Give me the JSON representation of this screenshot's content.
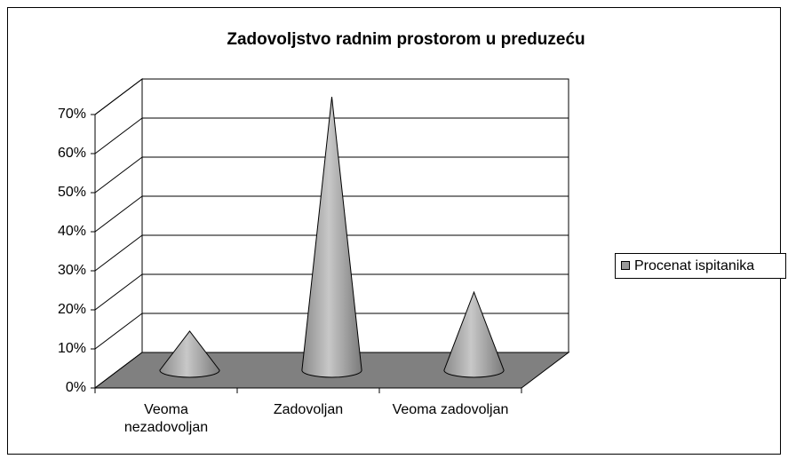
{
  "chart_data": {
    "type": "cone3d",
    "title": "Zadovoljstvo radnim prostorom u preduzeću",
    "categories": [
      "Veoma nezadovoljan",
      "Zadovoljan",
      "Veoma zadovoljan"
    ],
    "series": [
      {
        "name": "Procenat ispitanika",
        "color": "#9a9a9a",
        "values": [
          10,
          70,
          20
        ]
      }
    ],
    "ylim": [
      0,
      70
    ],
    "yticks": [
      {
        "value": 0,
        "label": "0%"
      },
      {
        "value": 10,
        "label": "10%"
      },
      {
        "value": 20,
        "label": "20%"
      },
      {
        "value": 30,
        "label": "30%"
      },
      {
        "value": 40,
        "label": "40%"
      },
      {
        "value": 50,
        "label": "50%"
      },
      {
        "value": 60,
        "label": "60%"
      },
      {
        "value": 70,
        "label": "70%"
      }
    ],
    "grid": true,
    "legend": "right"
  }
}
